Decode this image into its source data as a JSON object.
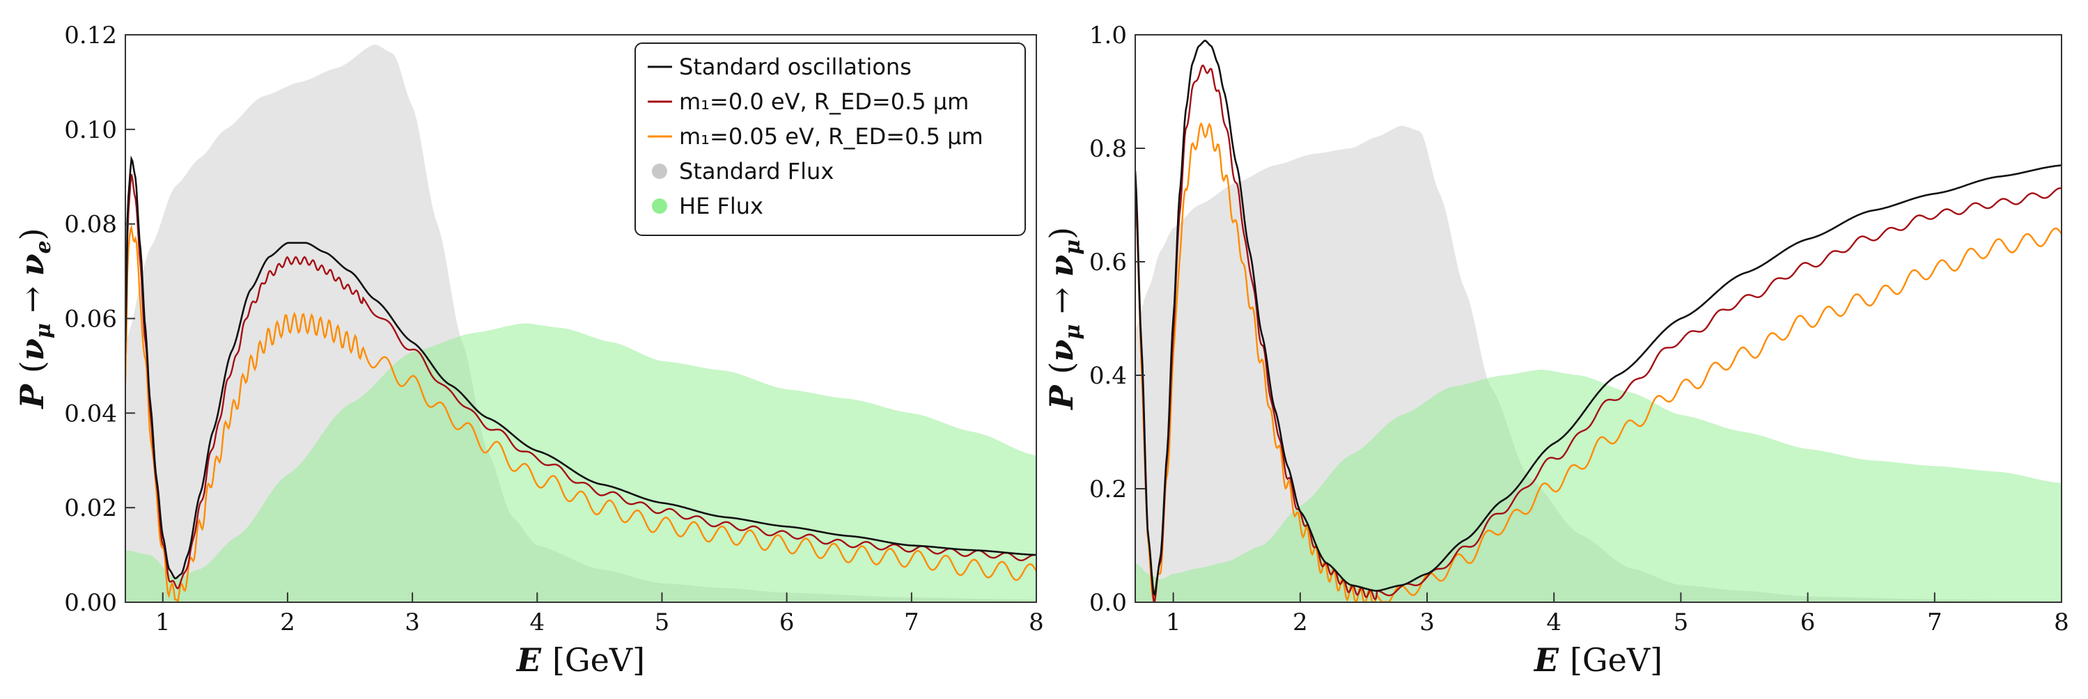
{
  "chart_data": [
    {
      "type": "line",
      "id": "left",
      "xlabel": "E [GeV]",
      "ylabel": "P (νμ → νe)",
      "xlim": [
        0.7,
        8
      ],
      "ylim": [
        0,
        0.12
      ],
      "xticks": [
        1,
        2,
        3,
        4,
        5,
        6,
        7,
        8
      ],
      "yticks": [
        0.0,
        0.02,
        0.04,
        0.06,
        0.08,
        0.1,
        0.12
      ],
      "ytick_labels": [
        "0.00",
        "0.02",
        "0.04",
        "0.06",
        "0.08",
        "0.10",
        "0.12"
      ],
      "legend_position": "top-right",
      "legend": [
        {
          "label": "Standard oscillations",
          "color": "#111111",
          "marker": "line"
        },
        {
          "label": "m₁=0.0 eV,   R_ED=0.5 μm",
          "color": "#a50f15",
          "marker": "line"
        },
        {
          "label": "m₁=0.05 eV,   R_ED=0.5 μm",
          "color": "#ff8c00",
          "marker": "line"
        },
        {
          "label": "Standard Flux",
          "color": "#c8c8c8",
          "marker": "dot"
        },
        {
          "label": "HE Flux",
          "color": "#90ee90",
          "marker": "dot"
        }
      ],
      "standard_flux": {
        "x": [
          0.7,
          0.9,
          1.1,
          1.3,
          1.5,
          1.8,
          2.1,
          2.4,
          2.7,
          2.85,
          3.0,
          3.2,
          3.4,
          3.6,
          3.8,
          4.0,
          4.5,
          5.0,
          5.5,
          6.0,
          7.0,
          8.0
        ],
        "y": [
          0.055,
          0.075,
          0.088,
          0.094,
          0.1,
          0.107,
          0.11,
          0.113,
          0.118,
          0.116,
          0.105,
          0.08,
          0.055,
          0.032,
          0.018,
          0.012,
          0.007,
          0.004,
          0.003,
          0.002,
          0.001,
          0.0005
        ]
      },
      "he_flux": {
        "x": [
          0.7,
          0.9,
          1.1,
          1.3,
          1.6,
          2.0,
          2.5,
          3.0,
          3.5,
          3.9,
          4.2,
          4.6,
          5.0,
          5.5,
          6.0,
          6.5,
          7.0,
          7.5,
          8.0
        ],
        "y": [
          0.011,
          0.01,
          0.005,
          0.007,
          0.014,
          0.027,
          0.042,
          0.053,
          0.057,
          0.059,
          0.058,
          0.055,
          0.051,
          0.049,
          0.045,
          0.043,
          0.04,
          0.036,
          0.031
        ]
      },
      "series": [
        {
          "name": "Standard oscillations",
          "color": "#111111",
          "x": [
            0.7,
            0.72,
            0.75,
            0.78,
            0.82,
            0.86,
            0.9,
            0.95,
            1.0,
            1.05,
            1.1,
            1.15,
            1.2,
            1.3,
            1.4,
            1.55,
            1.7,
            1.85,
            2.0,
            2.15,
            2.3,
            2.5,
            2.7,
            3.0,
            3.3,
            3.6,
            4.0,
            4.5,
            5.0,
            5.5,
            6.0,
            6.5,
            7.0,
            7.5,
            8.0
          ],
          "y": [
            0.055,
            0.085,
            0.094,
            0.09,
            0.075,
            0.058,
            0.042,
            0.026,
            0.014,
            0.007,
            0.005,
            0.006,
            0.01,
            0.023,
            0.036,
            0.053,
            0.066,
            0.073,
            0.076,
            0.076,
            0.074,
            0.07,
            0.064,
            0.055,
            0.046,
            0.039,
            0.032,
            0.025,
            0.021,
            0.018,
            0.016,
            0.014,
            0.012,
            0.011,
            0.01
          ]
        },
        {
          "name": "m₁=0.0 eV, R_ED=0.5 μm",
          "color": "#a50f15",
          "wiggle": 0.0015,
          "x": [
            0.7,
            0.72,
            0.75,
            0.78,
            0.82,
            0.86,
            0.9,
            0.95,
            1.0,
            1.05,
            1.1,
            1.15,
            1.2,
            1.3,
            1.4,
            1.55,
            1.7,
            1.85,
            2.0,
            2.15,
            2.3,
            2.5,
            2.7,
            3.0,
            3.3,
            3.6,
            4.0,
            4.5,
            5.0,
            5.5,
            6.0,
            6.5,
            7.0,
            7.5,
            8.0
          ],
          "y": [
            0.054,
            0.082,
            0.091,
            0.087,
            0.072,
            0.056,
            0.041,
            0.025,
            0.013,
            0.006,
            0.004,
            0.005,
            0.009,
            0.021,
            0.034,
            0.05,
            0.063,
            0.07,
            0.073,
            0.073,
            0.071,
            0.067,
            0.062,
            0.054,
            0.045,
            0.038,
            0.031,
            0.024,
            0.02,
            0.017,
            0.015,
            0.013,
            0.012,
            0.011,
            0.01
          ]
        },
        {
          "name": "m₁=0.05 eV, R_ED=0.5 μm",
          "color": "#ff8c00",
          "wiggle": 0.004,
          "x": [
            0.7,
            0.72,
            0.75,
            0.78,
            0.82,
            0.86,
            0.9,
            0.95,
            1.0,
            1.05,
            1.1,
            1.15,
            1.2,
            1.3,
            1.4,
            1.55,
            1.7,
            1.85,
            2.0,
            2.15,
            2.3,
            2.5,
            2.7,
            3.0,
            3.3,
            3.6,
            4.0,
            4.5,
            5.0,
            5.5,
            6.0,
            6.5,
            7.0,
            7.5,
            8.0
          ],
          "y": [
            0.05,
            0.074,
            0.082,
            0.079,
            0.066,
            0.052,
            0.039,
            0.024,
            0.012,
            0.005,
            0.003,
            0.004,
            0.008,
            0.018,
            0.029,
            0.042,
            0.052,
            0.058,
            0.061,
            0.061,
            0.06,
            0.057,
            0.053,
            0.048,
            0.041,
            0.035,
            0.028,
            0.022,
            0.018,
            0.016,
            0.014,
            0.012,
            0.011,
            0.009,
            0.008
          ]
        }
      ]
    },
    {
      "type": "line",
      "id": "right",
      "xlabel": "E [GeV]",
      "ylabel": "P (νμ → νμ)",
      "xlim": [
        0.7,
        8
      ],
      "ylim": [
        0,
        1.0
      ],
      "xticks": [
        1,
        2,
        3,
        4,
        5,
        6,
        7,
        8
      ],
      "yticks": [
        0.0,
        0.2,
        0.4,
        0.6,
        0.8,
        1.0
      ],
      "ytick_labels": [
        "0.0",
        "0.2",
        "0.4",
        "0.6",
        "0.8",
        "1.0"
      ],
      "standard_flux": {
        "x": [
          0.7,
          0.8,
          0.9,
          1.0,
          1.2,
          1.5,
          1.8,
          2.1,
          2.4,
          2.6,
          2.8,
          2.95,
          3.1,
          3.3,
          3.5,
          3.8,
          4.2,
          4.6,
          5.0,
          5.5,
          6.0,
          7.0,
          8.0
        ],
        "y": [
          0.48,
          0.55,
          0.62,
          0.66,
          0.7,
          0.74,
          0.77,
          0.79,
          0.8,
          0.82,
          0.84,
          0.83,
          0.72,
          0.55,
          0.38,
          0.22,
          0.12,
          0.06,
          0.03,
          0.02,
          0.01,
          0.005,
          0.002
        ]
      },
      "he_flux": {
        "x": [
          0.7,
          0.8,
          0.9,
          1.0,
          1.2,
          1.4,
          1.7,
          2.0,
          2.4,
          2.8,
          3.2,
          3.6,
          3.9,
          4.2,
          4.6,
          5.0,
          5.5,
          6.0,
          6.5,
          7.0,
          7.5,
          8.0
        ],
        "y": [
          0.07,
          0.05,
          0.04,
          0.05,
          0.06,
          0.07,
          0.1,
          0.17,
          0.26,
          0.33,
          0.38,
          0.4,
          0.41,
          0.4,
          0.37,
          0.33,
          0.3,
          0.27,
          0.25,
          0.24,
          0.23,
          0.21
        ]
      },
      "series": [
        {
          "name": "Standard oscillations",
          "color": "#111111",
          "x": [
            0.7,
            0.75,
            0.8,
            0.85,
            0.9,
            0.95,
            1.0,
            1.05,
            1.1,
            1.15,
            1.2,
            1.25,
            1.3,
            1.35,
            1.4,
            1.5,
            1.6,
            1.7,
            1.8,
            1.9,
            2.0,
            2.2,
            2.4,
            2.6,
            2.8,
            3.0,
            3.3,
            3.6,
            4.0,
            4.5,
            5.0,
            5.5,
            6.0,
            6.5,
            7.0,
            7.5,
            8.0
          ],
          "y": [
            0.76,
            0.45,
            0.12,
            0.01,
            0.08,
            0.26,
            0.5,
            0.72,
            0.87,
            0.95,
            0.98,
            0.99,
            0.98,
            0.95,
            0.9,
            0.77,
            0.62,
            0.47,
            0.34,
            0.24,
            0.16,
            0.07,
            0.03,
            0.02,
            0.03,
            0.05,
            0.11,
            0.18,
            0.28,
            0.4,
            0.5,
            0.58,
            0.64,
            0.69,
            0.72,
            0.75,
            0.77
          ]
        },
        {
          "name": "m₁=0.0 eV, R_ED=0.5 μm",
          "color": "#a50f15",
          "wiggle": 0.015,
          "x": [
            0.7,
            0.75,
            0.8,
            0.85,
            0.9,
            0.95,
            1.0,
            1.05,
            1.1,
            1.15,
            1.2,
            1.25,
            1.3,
            1.35,
            1.4,
            1.5,
            1.6,
            1.7,
            1.8,
            1.9,
            2.0,
            2.2,
            2.4,
            2.6,
            2.8,
            3.0,
            3.3,
            3.6,
            4.0,
            4.5,
            5.0,
            5.5,
            6.0,
            6.5,
            7.0,
            7.5,
            8.0
          ],
          "y": [
            0.75,
            0.44,
            0.12,
            0.01,
            0.08,
            0.25,
            0.48,
            0.7,
            0.84,
            0.91,
            0.94,
            0.95,
            0.94,
            0.91,
            0.86,
            0.74,
            0.6,
            0.46,
            0.33,
            0.23,
            0.16,
            0.07,
            0.03,
            0.02,
            0.03,
            0.05,
            0.1,
            0.17,
            0.26,
            0.37,
            0.47,
            0.54,
            0.6,
            0.65,
            0.69,
            0.71,
            0.73
          ]
        },
        {
          "name": "m₁=0.05 eV, R_ED=0.5 μm",
          "color": "#ff8c00",
          "wiggle": 0.03,
          "x": [
            0.7,
            0.75,
            0.8,
            0.85,
            0.9,
            0.95,
            1.0,
            1.05,
            1.1,
            1.15,
            1.2,
            1.25,
            1.3,
            1.35,
            1.4,
            1.5,
            1.6,
            1.7,
            1.8,
            1.9,
            2.0,
            2.2,
            2.4,
            2.6,
            2.8,
            3.0,
            3.3,
            3.6,
            4.0,
            4.5,
            5.0,
            5.5,
            6.0,
            6.5,
            7.0,
            7.5,
            8.0
          ],
          "y": [
            0.74,
            0.43,
            0.11,
            0.02,
            0.08,
            0.23,
            0.44,
            0.63,
            0.75,
            0.81,
            0.84,
            0.85,
            0.84,
            0.81,
            0.77,
            0.67,
            0.55,
            0.43,
            0.31,
            0.22,
            0.15,
            0.07,
            0.03,
            0.02,
            0.03,
            0.05,
            0.09,
            0.15,
            0.22,
            0.31,
            0.39,
            0.45,
            0.51,
            0.55,
            0.6,
            0.64,
            0.66
          ]
        }
      ]
    }
  ]
}
